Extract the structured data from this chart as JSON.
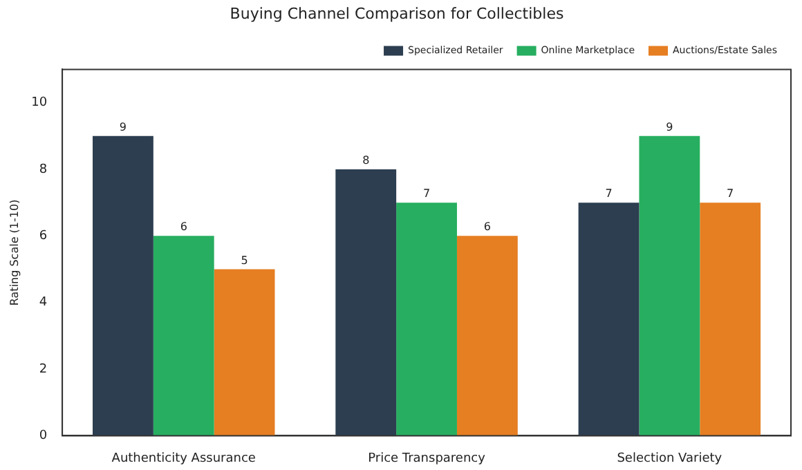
{
  "chart_data": {
    "type": "bar",
    "title": "Buying Channel Comparison for Collectibles",
    "ylabel": "Rating Scale (1-10)",
    "categories": [
      "Authenticity Assurance",
      "Price Transparency",
      "Selection Variety"
    ],
    "series": [
      {
        "name": "Specialized Retailer",
        "color": "#2c3e50",
        "values": [
          9,
          8,
          7
        ]
      },
      {
        "name": "Online Marketplace",
        "color": "#27ae60",
        "values": [
          6,
          7,
          9
        ]
      },
      {
        "name": "Auctions/Estate Sales",
        "color": "#e67e22",
        "values": [
          5,
          6,
          7
        ]
      }
    ],
    "ylim": [
      0,
      11
    ],
    "yticks": [
      0,
      2,
      4,
      6,
      8,
      10
    ],
    "grid": false,
    "legend": "top right",
    "data_labels": true
  }
}
